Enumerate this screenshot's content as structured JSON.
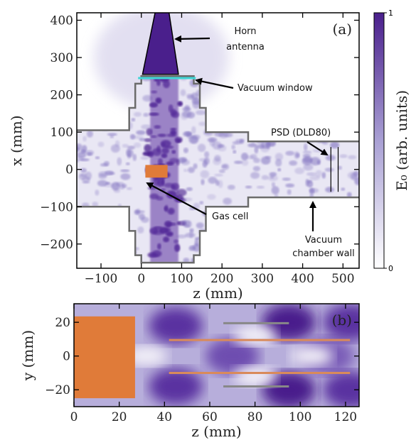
{
  "chart_data": [
    {
      "type": "field-map",
      "panel_label": "(a)",
      "xlabel": "z (mm)",
      "ylabel": "x (mm)",
      "xlim": [
        -160,
        540
      ],
      "ylim": [
        -265,
        420
      ],
      "xticks": [
        {
          "value": -100,
          "label": "−100"
        },
        0,
        100,
        200,
        300,
        400,
        500
      ],
      "yticks": [
        {
          "value": -200,
          "label": "−200"
        },
        {
          "value": -100,
          "label": "−100"
        },
        0,
        100,
        200,
        300,
        400
      ],
      "annotations": [
        "Horn",
        "antenna",
        "Vacuum window",
        "PSD (DLD80)",
        "Gas cell",
        "Vacuum",
        "chamber wall"
      ],
      "colorbar": {
        "label": "E₀ (arb. units)",
        "lim": [
          0,
          1
        ],
        "ticks": [
          0,
          1
        ]
      }
    },
    {
      "type": "field-map",
      "panel_label": "(b)",
      "xlabel": "z (mm)",
      "ylabel": "y (mm)",
      "xlim": [
        0,
        126
      ],
      "ylim": [
        -30,
        31
      ],
      "xticks": [
        0,
        20,
        40,
        60,
        80,
        100,
        120
      ],
      "yticks": [
        {
          "value": -20,
          "label": "−20"
        },
        0,
        20
      ]
    }
  ]
}
